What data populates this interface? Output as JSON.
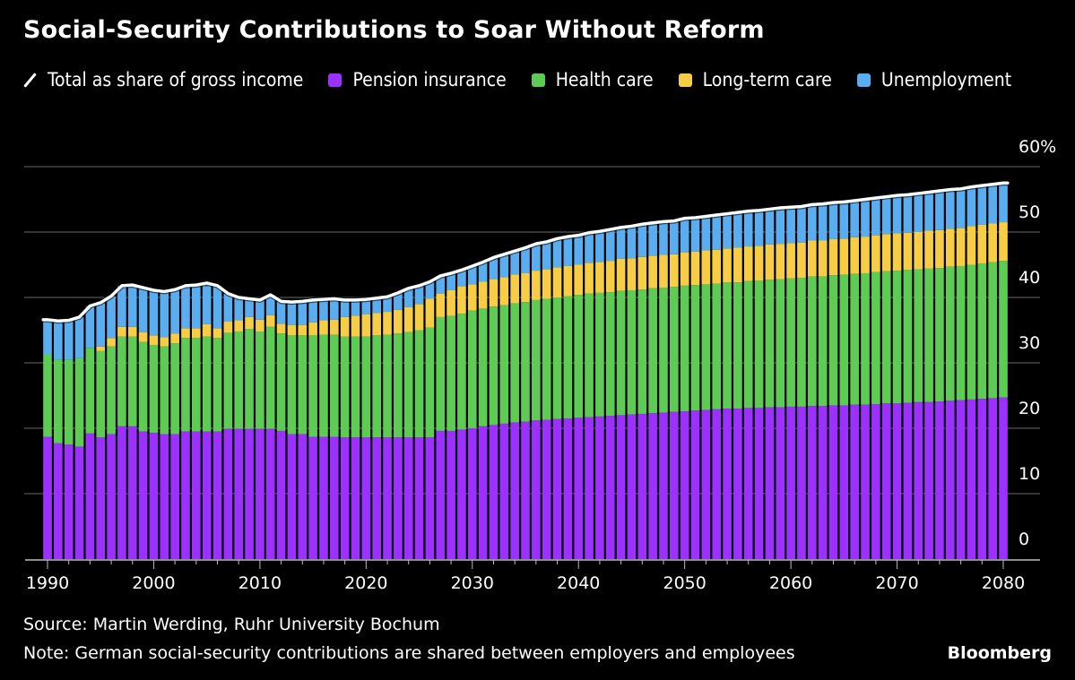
{
  "title": "Social-Security Contributions to Soar Without Reform",
  "legend": [
    {
      "label": "Total as share of gross income",
      "kind": "line",
      "color": "#ffffff"
    },
    {
      "label": "Pension insurance",
      "kind": "swatch",
      "color": "#9b30ff"
    },
    {
      "label": "Health care",
      "kind": "swatch",
      "color": "#5ecb55"
    },
    {
      "label": "Long-term care",
      "kind": "swatch",
      "color": "#f7cd45"
    },
    {
      "label": "Unemployment",
      "kind": "swatch",
      "color": "#5aaef0"
    }
  ],
  "footer": {
    "source": "Source: Martin Werding, Ruhr University Bochum",
    "note": "Note: German social-security contributions are shared between employers and employees",
    "brand": "Bloomberg"
  },
  "chart_data": {
    "type": "bar",
    "stacked": true,
    "title": "Social-Security Contributions to Soar Without Reform",
    "xlabel": "",
    "ylabel": "",
    "y_unit": "%",
    "ylim": [
      0,
      60
    ],
    "yticks": [
      0,
      10,
      20,
      30,
      40,
      50,
      60
    ],
    "ytick_labels": [
      "0",
      "10",
      "20",
      "30",
      "40",
      "50",
      "60%"
    ],
    "y_axis_side": "right",
    "grid": true,
    "xlim": [
      1990,
      2080
    ],
    "xticks": [
      1990,
      2000,
      2010,
      2020,
      2030,
      2040,
      2050,
      2060,
      2070,
      2080
    ],
    "xtick_labels": [
      "1990",
      "2000",
      "2010",
      "2020",
      "2030",
      "2040",
      "2050",
      "2060",
      "2070",
      "2080"
    ],
    "legend_position": "top-left",
    "x": [
      1990,
      1991,
      1992,
      1993,
      1994,
      1995,
      1996,
      1997,
      1998,
      1999,
      2000,
      2001,
      2002,
      2003,
      2004,
      2005,
      2006,
      2007,
      2008,
      2009,
      2010,
      2011,
      2012,
      2013,
      2014,
      2015,
      2016,
      2017,
      2018,
      2019,
      2020,
      2021,
      2022,
      2023,
      2024,
      2025,
      2026,
      2027,
      2028,
      2029,
      2030,
      2031,
      2032,
      2033,
      2034,
      2035,
      2036,
      2037,
      2038,
      2039,
      2040,
      2041,
      2042,
      2043,
      2044,
      2045,
      2046,
      2047,
      2048,
      2049,
      2050,
      2051,
      2052,
      2053,
      2054,
      2055,
      2056,
      2057,
      2058,
      2059,
      2060,
      2061,
      2062,
      2063,
      2064,
      2065,
      2066,
      2067,
      2068,
      2069,
      2070,
      2071,
      2072,
      2073,
      2074,
      2075,
      2076,
      2077,
      2078,
      2079,
      2080
    ],
    "series": [
      {
        "name": "Pension insurance",
        "color": "#9b30ff",
        "values": [
          18.7,
          17.7,
          17.5,
          17.2,
          19.2,
          18.6,
          19.1,
          20.3,
          20.3,
          19.5,
          19.3,
          19.1,
          19.1,
          19.5,
          19.5,
          19.5,
          19.5,
          19.9,
          19.9,
          19.9,
          19.9,
          19.9,
          19.6,
          19.1,
          19.1,
          18.7,
          18.7,
          18.7,
          18.6,
          18.6,
          18.6,
          18.6,
          18.6,
          18.6,
          18.6,
          18.6,
          18.6,
          19.6,
          19.6,
          19.8,
          20.0,
          20.3,
          20.5,
          20.7,
          20.9,
          21.0,
          21.2,
          21.3,
          21.4,
          21.5,
          21.6,
          21.7,
          21.8,
          21.9,
          22.0,
          22.1,
          22.2,
          22.3,
          22.4,
          22.5,
          22.6,
          22.7,
          22.8,
          22.9,
          23.0,
          23.0,
          23.1,
          23.1,
          23.2,
          23.2,
          23.3,
          23.3,
          23.4,
          23.4,
          23.5,
          23.5,
          23.6,
          23.6,
          23.7,
          23.8,
          23.8,
          23.9,
          24.0,
          24.0,
          24.1,
          24.2,
          24.3,
          24.4,
          24.5,
          24.6,
          24.7
        ]
      },
      {
        "name": "Health care",
        "color": "#5ecb55",
        "values": [
          12.6,
          12.8,
          13.0,
          13.5,
          13.1,
          13.2,
          13.4,
          13.7,
          13.7,
          13.7,
          13.4,
          13.4,
          13.9,
          14.3,
          14.3,
          14.5,
          14.3,
          14.7,
          14.9,
          15.3,
          14.9,
          15.6,
          14.9,
          15.1,
          15.1,
          15.5,
          15.6,
          15.6,
          15.4,
          15.4,
          15.4,
          15.6,
          15.7,
          15.9,
          16.1,
          16.4,
          16.8,
          17.4,
          17.6,
          17.7,
          18.0,
          18.0,
          18.1,
          18.1,
          18.2,
          18.3,
          18.4,
          18.5,
          18.6,
          18.7,
          18.8,
          18.9,
          18.9,
          18.9,
          19.0,
          19.0,
          19.0,
          19.1,
          19.1,
          19.1,
          19.2,
          19.2,
          19.2,
          19.2,
          19.3,
          19.3,
          19.4,
          19.5,
          19.5,
          19.6,
          19.6,
          19.7,
          19.8,
          19.8,
          19.9,
          20.0,
          20.0,
          20.1,
          20.2,
          20.2,
          20.3,
          20.3,
          20.3,
          20.4,
          20.4,
          20.5,
          20.5,
          20.6,
          20.7,
          20.8,
          20.9
        ]
      },
      {
        "name": "Long-term care",
        "color": "#f7cd45",
        "values": [
          0,
          0,
          0,
          0,
          0,
          0.7,
          1.3,
          1.5,
          1.5,
          1.5,
          1.5,
          1.4,
          1.5,
          1.5,
          1.5,
          1.9,
          1.5,
          1.7,
          1.7,
          1.8,
          1.8,
          1.8,
          1.5,
          1.6,
          1.6,
          2.0,
          2.2,
          2.3,
          3.0,
          3.2,
          3.4,
          3.4,
          3.5,
          3.6,
          3.8,
          4.0,
          4.4,
          3.6,
          3.9,
          4.2,
          4.0,
          4.1,
          4.2,
          4.3,
          4.4,
          4.4,
          4.5,
          4.5,
          4.6,
          4.6,
          4.6,
          4.7,
          4.7,
          4.8,
          4.9,
          4.9,
          5.0,
          5.0,
          5.0,
          5.0,
          5.1,
          5.1,
          5.2,
          5.2,
          5.2,
          5.3,
          5.3,
          5.3,
          5.4,
          5.4,
          5.4,
          5.4,
          5.5,
          5.5,
          5.5,
          5.5,
          5.6,
          5.6,
          5.6,
          5.7,
          5.7,
          5.7,
          5.7,
          5.8,
          5.8,
          5.8,
          5.8,
          5.9,
          5.9,
          5.9,
          5.9
        ]
      },
      {
        "name": "Unemployment",
        "color": "#5aaef0",
        "values": [
          5.3,
          5.9,
          6.0,
          6.3,
          6.4,
          6.7,
          6.4,
          6.3,
          6.4,
          6.8,
          6.9,
          7.0,
          6.7,
          6.5,
          6.6,
          6.3,
          6.5,
          4.3,
          3.5,
          2.8,
          3.0,
          3.1,
          3.4,
          3.5,
          3.6,
          3.4,
          3.2,
          3.2,
          2.6,
          2.4,
          2.3,
          2.3,
          2.3,
          2.6,
          2.9,
          2.8,
          2.6,
          2.7,
          2.6,
          2.5,
          2.8,
          3.0,
          3.3,
          3.5,
          3.6,
          3.9,
          4.1,
          4.2,
          4.4,
          4.5,
          4.5,
          4.6,
          4.7,
          4.8,
          4.8,
          4.9,
          5.0,
          5.0,
          5.1,
          5.1,
          5.2,
          5.2,
          5.2,
          5.3,
          5.3,
          5.4,
          5.4,
          5.4,
          5.4,
          5.5,
          5.5,
          5.5,
          5.5,
          5.6,
          5.6,
          5.6,
          5.6,
          5.7,
          5.7,
          5.7,
          5.8,
          5.8,
          5.9,
          5.9,
          6.0,
          6.0,
          6.0,
          6.0,
          6.0,
          6.0,
          6.0
        ]
      },
      {
        "name": "Total as share of gross income",
        "type": "line",
        "color": "#ffffff",
        "values": [
          36.6,
          36.4,
          36.5,
          37.0,
          38.7,
          39.2,
          40.2,
          41.8,
          41.9,
          41.5,
          41.1,
          40.9,
          41.2,
          41.8,
          41.9,
          42.2,
          41.8,
          40.6,
          40.0,
          39.8,
          39.6,
          40.4,
          39.4,
          39.3,
          39.4,
          39.6,
          39.7,
          39.8,
          39.6,
          39.6,
          39.7,
          39.9,
          40.1,
          40.7,
          41.4,
          41.8,
          42.4,
          43.3,
          43.7,
          44.2,
          44.8,
          45.4,
          46.1,
          46.6,
          47.1,
          47.6,
          48.2,
          48.5,
          49.0,
          49.3,
          49.5,
          49.9,
          50.1,
          50.4,
          50.7,
          50.9,
          51.2,
          51.4,
          51.6,
          51.7,
          52.1,
          52.2,
          52.4,
          52.6,
          52.8,
          53.0,
          53.2,
          53.3,
          53.5,
          53.7,
          53.8,
          53.9,
          54.2,
          54.3,
          54.5,
          54.6,
          54.8,
          55.0,
          55.2,
          55.4,
          55.6,
          55.7,
          55.9,
          56.1,
          56.3,
          56.5,
          56.6,
          56.9,
          57.1,
          57.3,
          57.5
        ]
      }
    ]
  }
}
